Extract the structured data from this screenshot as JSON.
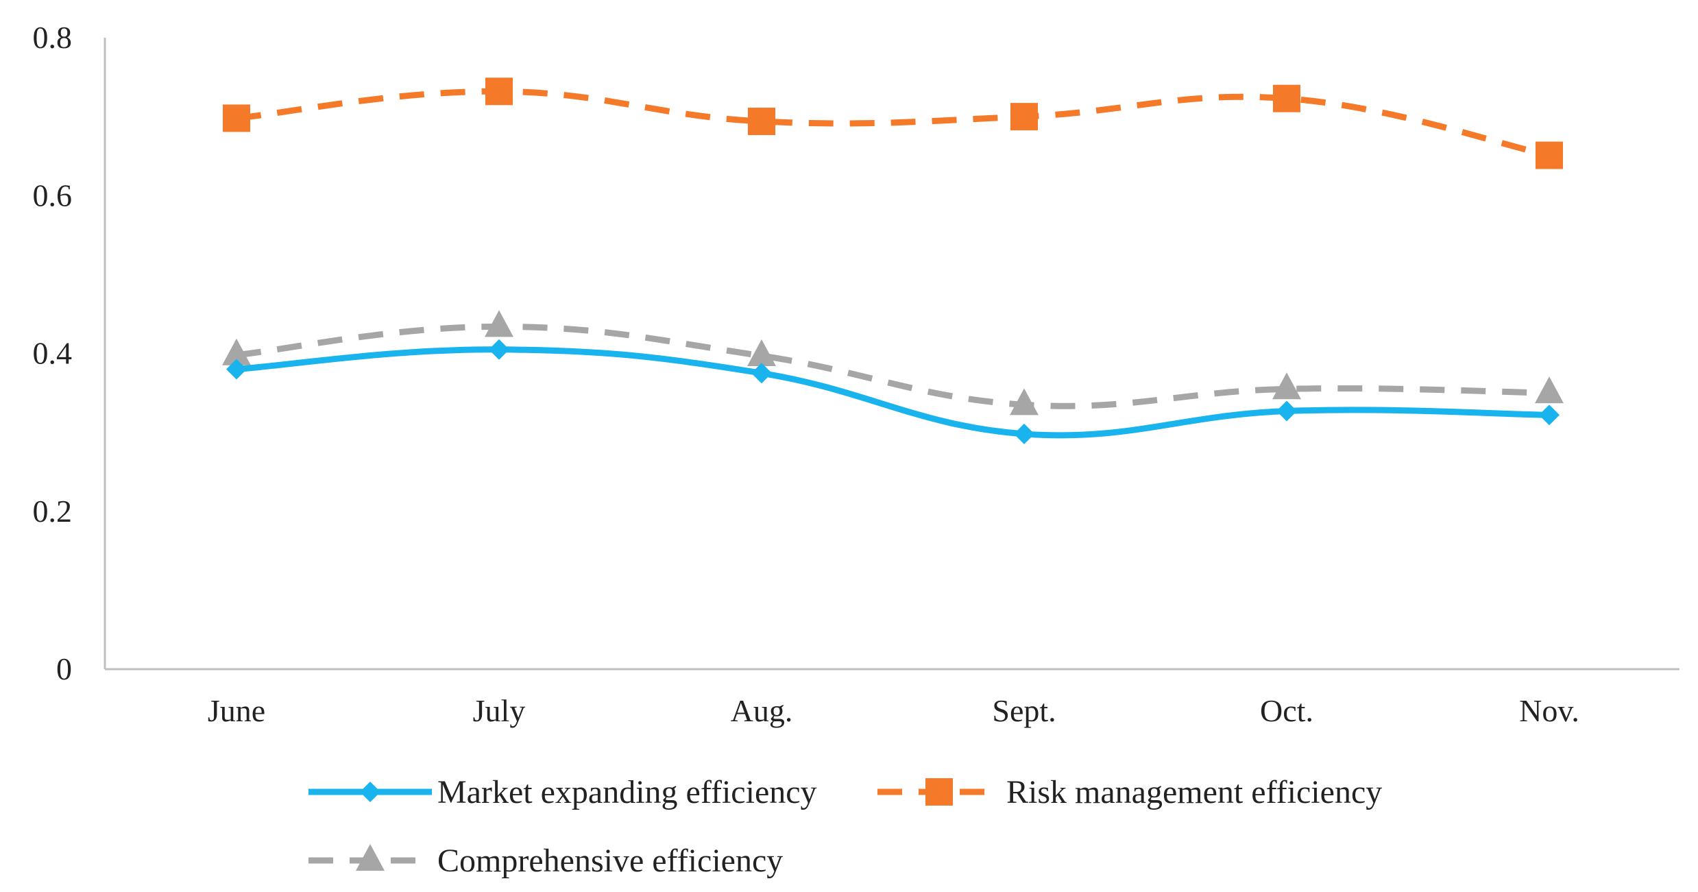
{
  "chart_data": {
    "type": "line",
    "title": "",
    "xlabel": "",
    "ylabel": "",
    "categories": [
      "June",
      "July",
      "Aug.",
      "Sept.",
      "Oct.",
      "Nov."
    ],
    "ylim": [
      0,
      0.8
    ],
    "yticks": [
      "0",
      "0.2",
      "0.4",
      "0.6",
      "0.8"
    ],
    "ytick_values": [
      0,
      0.2,
      0.4,
      0.6,
      0.8
    ],
    "grid": false,
    "legend_position": "bottom",
    "series": [
      {
        "name": "Market expanding efficiency",
        "values": [
          0.38,
          0.405,
          0.375,
          0.298,
          0.327,
          0.322
        ],
        "color": "#19b3ee",
        "marker": "diamond",
        "line_style": "solid"
      },
      {
        "name": "Risk management efficiency",
        "values": [
          0.698,
          0.732,
          0.694,
          0.7,
          0.723,
          0.651
        ],
        "color": "#f47a2a",
        "marker": "square",
        "line_style": "dashed"
      },
      {
        "name": "Comprehensive efficiency",
        "values": [
          0.398,
          0.434,
          0.397,
          0.335,
          0.355,
          0.35
        ],
        "color": "#a6a6a6",
        "marker": "triangle",
        "line_style": "dashed"
      }
    ]
  }
}
